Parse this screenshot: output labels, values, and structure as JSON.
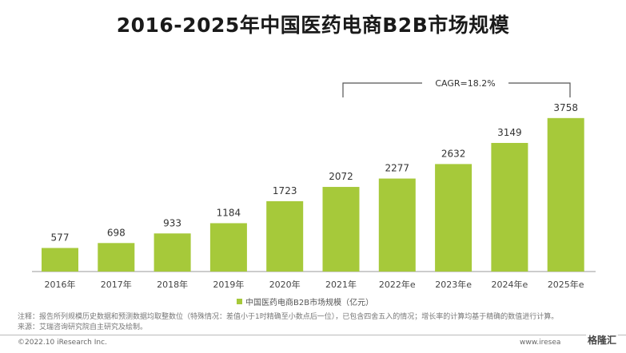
{
  "chart_data": {
    "type": "bar",
    "title": "2016-2025年中国医药电商B2B市场规模",
    "categories": [
      "2016年",
      "2017年",
      "2018年",
      "2019年",
      "2020年",
      "2021年",
      "2022年e",
      "2023年e",
      "2024年e",
      "2025年e"
    ],
    "series": [
      {
        "name": "中国医药电商B2B市场规模（亿元）",
        "values": [
          577,
          698,
          933,
          1184,
          1723,
          2072,
          2277,
          2632,
          3149,
          3758
        ]
      }
    ],
    "data_labels": [
      "577",
      "698",
      "933",
      "1184",
      "1723",
      "2072",
      "2277",
      "2632",
      "3149",
      "3758"
    ],
    "ylim": [
      0,
      4400
    ],
    "annotation": "CAGR=18.2%",
    "legend_position": "bottom",
    "grid": false,
    "bar_color": "#a6c93a"
  },
  "notes": {
    "line1": "注释：报告所列规模历史数据和预测数据均取整数位（特殊情况：差值小于1时精确至小数点后一位），已包含四舍五入的情况；增长率的计算均基于精确的数值进行计算。",
    "line2": "来源：艾瑞咨询研究院自主研究及绘制。"
  },
  "footer": {
    "copyright": "©2022.10 iResearch Inc.",
    "website": "www.iresea",
    "watermark": "格隆汇"
  }
}
